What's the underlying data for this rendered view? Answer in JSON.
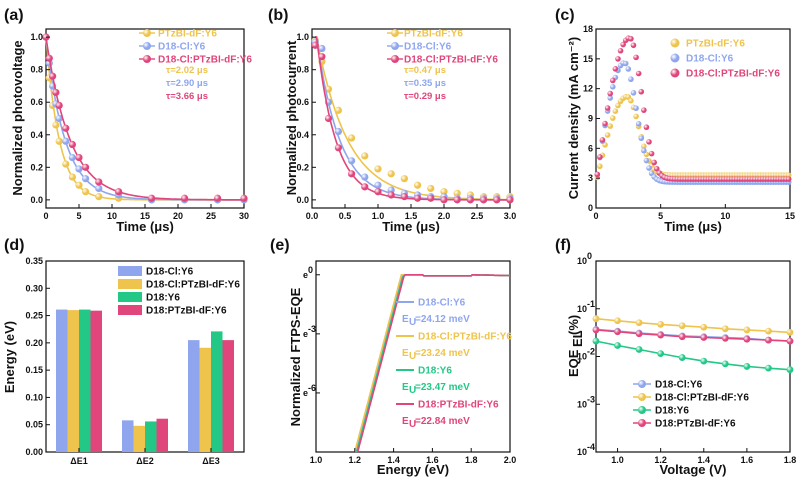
{
  "colors": {
    "yellow": "#EEC44D",
    "blue": "#8FA6EE",
    "pink": "#E0457B",
    "green": "#23C887"
  },
  "chart_data": [
    {
      "id": "a",
      "panel_label": "(a)",
      "type": "scatter",
      "xlabel": "Time (μs)",
      "ylabel": "Normalized photovoltage",
      "xlim": [
        0,
        30
      ],
      "ylim": [
        -0.05,
        1.05
      ],
      "xticks": [
        "0",
        "5",
        "10",
        "15",
        "20",
        "25",
        "30"
      ],
      "yticks": [
        "0.0",
        "0.2",
        "0.4",
        "0.6",
        "0.8",
        "1.0"
      ],
      "legend": [
        "PTzBI-dF:Y6",
        "D18-Cl:Y6",
        "D18-Cl:PTzBI-dF:Y6"
      ],
      "annotations": [
        "τ=2.02 μs",
        "τ=2.90 μs",
        "τ=3.66 μs"
      ],
      "series": [
        {
          "name": "PTzBI-dF:Y6",
          "color": "yellow",
          "tau": 2.02,
          "x": [
            0,
            0.5,
            1,
            1.5,
            2,
            3,
            4,
            5,
            6,
            8,
            11,
            16,
            21,
            26,
            30
          ],
          "y": [
            1.0,
            0.75,
            0.58,
            0.46,
            0.36,
            0.22,
            0.14,
            0.09,
            0.05,
            0.02,
            0.01,
            0.0,
            0.0,
            0.0,
            0.0
          ]
        },
        {
          "name": "D18-Cl:Y6",
          "color": "blue",
          "tau": 2.9,
          "x": [
            0,
            0.5,
            1,
            1.5,
            2,
            3,
            4,
            5,
            6,
            8,
            11,
            16,
            21,
            26,
            30
          ],
          "y": [
            1.0,
            0.84,
            0.7,
            0.59,
            0.5,
            0.36,
            0.26,
            0.19,
            0.13,
            0.07,
            0.03,
            0.0,
            0.0,
            0.0,
            0.0
          ]
        },
        {
          "name": "D18-Cl:PTzBI-dF:Y6",
          "color": "pink",
          "tau": 3.66,
          "x": [
            0,
            0.5,
            1,
            1.5,
            2,
            3,
            4,
            5,
            6,
            8,
            11,
            16,
            21,
            26,
            30
          ],
          "y": [
            1.0,
            0.87,
            0.76,
            0.66,
            0.58,
            0.44,
            0.34,
            0.26,
            0.2,
            0.11,
            0.05,
            0.01,
            0.01,
            0.01,
            0.01
          ]
        }
      ]
    },
    {
      "id": "b",
      "panel_label": "(b)",
      "type": "scatter",
      "xlabel": "Time (μs)",
      "ylabel": "Normalized photocurrent",
      "xlim": [
        0,
        3.0
      ],
      "ylim": [
        -0.05,
        1.05
      ],
      "xticks": [
        "0.0",
        "0.5",
        "1.0",
        "1.5",
        "2.0",
        "2.5",
        "3.0"
      ],
      "yticks": [
        "0.0",
        "0.2",
        "0.4",
        "0.6",
        "0.8",
        "1.0"
      ],
      "legend": [
        "PTzBI-dF:Y6",
        "D18-Cl:Y6",
        "D18-Cl:PTzBI-dF:Y6"
      ],
      "annotations": [
        "τ=0.47 μs",
        "τ=0.35 μs",
        "τ=0.29 μs"
      ],
      "series": [
        {
          "name": "PTzBI-dF:Y6",
          "color": "yellow",
          "tau": 0.47,
          "x": [
            0.05,
            0.15,
            0.25,
            0.4,
            0.6,
            0.8,
            1.0,
            1.2,
            1.4,
            1.6,
            1.8,
            2.0,
            2.2,
            2.4,
            2.6,
            2.8,
            3.0
          ],
          "y": [
            0.98,
            0.85,
            0.68,
            0.55,
            0.38,
            0.27,
            0.19,
            0.16,
            0.13,
            0.09,
            0.07,
            0.05,
            0.04,
            0.03,
            0.02,
            0.02,
            0.02
          ]
        },
        {
          "name": "D18-Cl:Y6",
          "color": "blue",
          "tau": 0.35,
          "x": [
            0.05,
            0.15,
            0.25,
            0.4,
            0.6,
            0.8,
            1.0,
            1.2,
            1.4,
            1.6,
            1.8,
            2.0,
            2.2,
            2.4,
            2.6,
            2.8,
            3.0
          ],
          "y": [
            0.97,
            0.93,
            0.6,
            0.42,
            0.24,
            0.14,
            0.09,
            0.06,
            0.04,
            0.03,
            0.02,
            0.02,
            0.01,
            0.01,
            0.01,
            0.01,
            0.01
          ]
        },
        {
          "name": "D18-Cl:PTzBI-dF:Y6",
          "color": "pink",
          "tau": 0.29,
          "x": [
            0.05,
            0.15,
            0.25,
            0.4,
            0.6,
            0.8,
            1.0,
            1.2,
            1.4,
            1.6,
            1.8,
            2.0,
            2.2,
            2.4,
            2.6,
            2.8,
            3.0
          ],
          "y": [
            0.95,
            0.88,
            0.5,
            0.32,
            0.16,
            0.08,
            0.05,
            0.03,
            0.02,
            0.01,
            0.01,
            0.0,
            0.0,
            0.0,
            0.0,
            0.0,
            0.0
          ]
        }
      ]
    },
    {
      "id": "c",
      "panel_label": "(c)",
      "type": "scatter",
      "xlabel": "Time (μs)",
      "ylabel": "Current density (mA cm⁻²)",
      "xlim": [
        0,
        15
      ],
      "ylim": [
        0,
        18
      ],
      "xticks": [
        "0",
        "5",
        "10",
        "15"
      ],
      "yticks": [
        "0",
        "3",
        "6",
        "9",
        "12",
        "15",
        "18"
      ],
      "legend": [
        "PTzBI-dF:Y6",
        "D18-Cl:Y6",
        "D18-Cl:PTzBI-dF:Y6"
      ],
      "series": [
        {
          "name": "PTzBI-dF:Y6",
          "color": "yellow",
          "peak_time": 2.4,
          "peak_value": 11.2,
          "tail_value": 3.3,
          "start_value": 2.5
        },
        {
          "name": "D18-Cl:Y6",
          "color": "blue",
          "peak_time": 2.2,
          "peak_value": 14.6,
          "tail_value": 2.6,
          "start_value": 2.5
        },
        {
          "name": "D18-Cl:PTzBI-dF:Y6",
          "color": "pink",
          "peak_time": 2.6,
          "peak_value": 17.1,
          "tail_value": 2.9,
          "start_value": 2.5
        }
      ]
    },
    {
      "id": "d",
      "panel_label": "(d)",
      "type": "bar",
      "xlabel": "",
      "ylabel": "Energy (eV)",
      "ylim": [
        0,
        0.35
      ],
      "yticks": [
        "0.00",
        "0.05",
        "0.10",
        "0.15",
        "0.20",
        "0.25",
        "0.30",
        "0.35"
      ],
      "categories": [
        "ΔE1",
        "ΔE2",
        "ΔE3"
      ],
      "legend": [
        "D18-Cl:Y6",
        "D18-Cl:PTzBI-dF:Y6",
        "D18:Y6",
        "D18:PTzBI-dF:Y6"
      ],
      "series": [
        {
          "name": "D18-Cl:Y6",
          "color": "blue",
          "values": [
            0.261,
            0.058,
            0.205
          ]
        },
        {
          "name": "D18-Cl:PTzBI-dF:Y6",
          "color": "yellow",
          "values": [
            0.26,
            0.048,
            0.191
          ]
        },
        {
          "name": "D18:Y6",
          "color": "green",
          "values": [
            0.261,
            0.056,
            0.221
          ]
        },
        {
          "name": "D18:PTzBI-dF:Y6",
          "color": "pink",
          "values": [
            0.259,
            0.061,
            0.205
          ]
        }
      ]
    },
    {
      "id": "e",
      "panel_label": "(e)",
      "type": "line",
      "xlabel": "Energy (eV)",
      "ylabel": "Normalized FTPS-EQE",
      "xlim": [
        1.0,
        2.0
      ],
      "ylim_log_e": [
        -9,
        0.7
      ],
      "xticks": [
        "1.0",
        "1.2",
        "1.4",
        "1.6",
        "1.8",
        "2.0"
      ],
      "yticks": [
        {
          "base": "e",
          "exp": "0",
          "v": 0
        },
        {
          "base": "e",
          "exp": "-3",
          "v": -3
        },
        {
          "base": "e",
          "exp": "-6",
          "v": -6
        }
      ],
      "legend": [
        {
          "name": "D18-Cl:Y6",
          "eu_prefix": "E",
          "eu_sub": "U",
          "eu_value": "=24.12 meV",
          "color": "blue"
        },
        {
          "name": "D18-Cl:PTzBI-dF:Y6",
          "eu_prefix": "E",
          "eu_sub": "U",
          "eu_value": "=23.24 meV",
          "color": "yellow"
        },
        {
          "name": "D18:Y6",
          "eu_prefix": "E",
          "eu_sub": "U",
          "eu_value": "=23.47 meV",
          "color": "green"
        },
        {
          "name": "D18:PTzBI-dF:Y6",
          "eu_prefix": "E",
          "eu_sub": "U",
          "eu_value": "=22.84 meV",
          "color": "pink"
        }
      ],
      "series": [
        {
          "name": "D18-Cl:Y6",
          "color": "blue",
          "onset": 1.205,
          "slope": 25,
          "knee": 1.45
        },
        {
          "name": "D18-Cl:PTzBI-dF:Y6",
          "color": "yellow",
          "onset": 1.2,
          "slope": 25,
          "knee": 1.44
        },
        {
          "name": "D18:Y6",
          "color": "green",
          "onset": 1.21,
          "slope": 25,
          "knee": 1.46
        },
        {
          "name": "D18:PTzBI-dF:Y6",
          "color": "pink",
          "onset": 1.215,
          "slope": 25,
          "knee": 1.46
        }
      ]
    },
    {
      "id": "f",
      "panel_label": "(f)",
      "type": "line",
      "xlabel": "Voltage (V)",
      "ylabel_main": "EQE",
      "ylabel_sub": "EL",
      "ylabel_suffix": "(%)",
      "xlim": [
        0.9,
        1.8
      ],
      "ylim_log10": [
        -4,
        0
      ],
      "xticks": [
        "1.0",
        "1.2",
        "1.4",
        "1.6",
        "1.8"
      ],
      "yticks": [
        {
          "base": "10",
          "exp": "0",
          "v": 0
        },
        {
          "base": "10",
          "exp": "-1",
          "v": -1
        },
        {
          "base": "10",
          "exp": "-2",
          "v": -2
        },
        {
          "base": "10",
          "exp": "-3",
          "v": -3
        },
        {
          "base": "10",
          "exp": "-4",
          "v": -4
        }
      ],
      "legend": [
        "D18-Cl:Y6",
        "D18-Cl:PTzBI-dF:Y6",
        "D18:Y6",
        "D18:PTzBI-dF:Y6"
      ],
      "series": [
        {
          "name": "D18-Cl:Y6",
          "color": "blue",
          "x": [
            0.9,
            1.0,
            1.1,
            1.2,
            1.3,
            1.4,
            1.5,
            1.6,
            1.7,
            1.8
          ],
          "y": [
            0.037,
            0.034,
            0.031,
            0.029,
            0.027,
            0.026,
            0.025,
            0.024,
            0.022,
            0.021
          ]
        },
        {
          "name": "D18-Cl:PTzBI-dF:Y6",
          "color": "yellow",
          "x": [
            0.9,
            1.0,
            1.1,
            1.2,
            1.3,
            1.4,
            1.5,
            1.6,
            1.7,
            1.8
          ],
          "y": [
            0.062,
            0.056,
            0.051,
            0.047,
            0.044,
            0.041,
            0.038,
            0.036,
            0.034,
            0.032
          ]
        },
        {
          "name": "D18:Y6",
          "color": "green",
          "x": [
            0.9,
            1.0,
            1.1,
            1.2,
            1.3,
            1.4,
            1.5,
            1.6,
            1.7,
            1.8
          ],
          "y": [
            0.021,
            0.017,
            0.014,
            0.0115,
            0.0095,
            0.008,
            0.007,
            0.0062,
            0.0057,
            0.0053
          ]
        },
        {
          "name": "D18:PTzBI-dF:Y6",
          "color": "pink",
          "x": [
            0.9,
            1.0,
            1.1,
            1.2,
            1.3,
            1.4,
            1.5,
            1.6,
            1.7,
            1.8
          ],
          "y": [
            0.036,
            0.033,
            0.03,
            0.028,
            0.026,
            0.025,
            0.024,
            0.023,
            0.022,
            0.021
          ]
        }
      ]
    }
  ]
}
